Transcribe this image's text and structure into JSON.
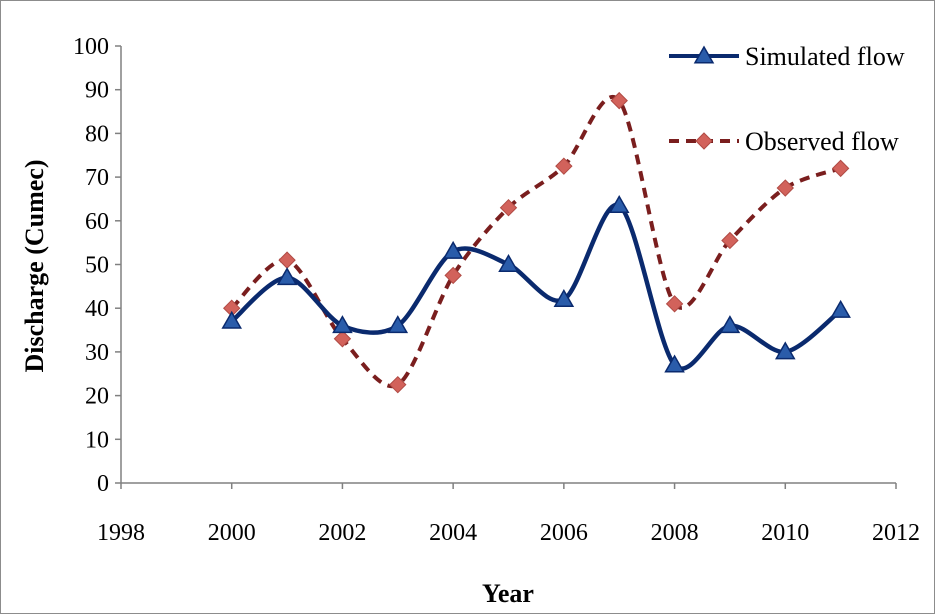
{
  "chart_data": {
    "type": "line",
    "title": "",
    "xlabel": "Year",
    "ylabel": "Discharge (Cumec)",
    "xlim": [
      1998,
      2012
    ],
    "ylim": [
      0,
      100
    ],
    "x_ticks": [
      1998,
      2000,
      2002,
      2004,
      2006,
      2008,
      2010,
      2012
    ],
    "y_ticks": [
      0,
      10,
      20,
      30,
      40,
      50,
      60,
      70,
      80,
      90,
      100
    ],
    "grid": false,
    "legend_position": "top-right",
    "x": [
      2000,
      2001,
      2002,
      2003,
      2004,
      2005,
      2006,
      2007,
      2008,
      2009,
      2010,
      2011
    ],
    "series": [
      {
        "name": "Simulated flow",
        "values": [
          37,
          47,
          36,
          36,
          53,
          50,
          42,
          63.5,
          27,
          36,
          30,
          39.5
        ],
        "color": "#0a2a6e",
        "line_style": "solid",
        "marker": "triangle"
      },
      {
        "name": "Observed flow",
        "values": [
          40,
          51,
          33,
          22.5,
          47.5,
          63,
          72.5,
          87.5,
          41,
          55.5,
          67.5,
          72
        ],
        "color": "#7a1e1e",
        "marker_color": "#d2625b",
        "line_style": "dashed",
        "marker": "diamond"
      }
    ]
  }
}
